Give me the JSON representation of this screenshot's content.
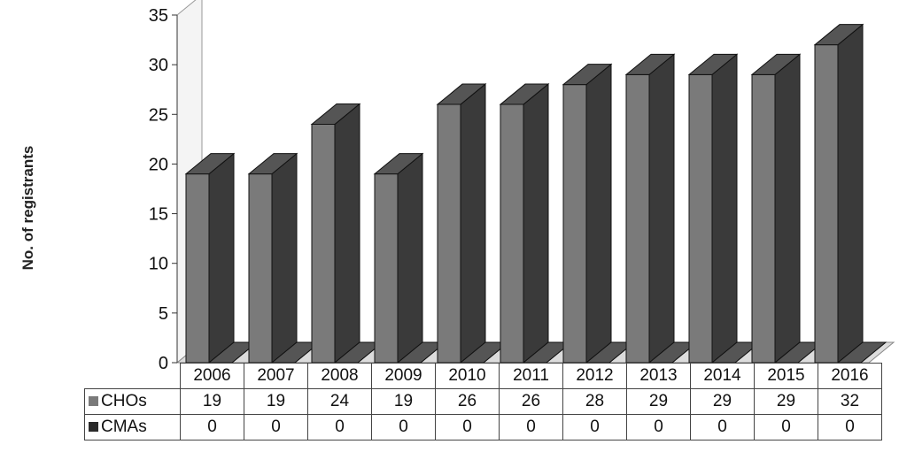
{
  "chart_data": {
    "type": "bar",
    "title": "",
    "ylabel": "No. of registrants",
    "xlabel": "",
    "categories": [
      "2006",
      "2007",
      "2008",
      "2009",
      "2010",
      "2011",
      "2012",
      "2013",
      "2014",
      "2015",
      "2016"
    ],
    "series": [
      {
        "name": "CHOs",
        "values": [
          19,
          19,
          24,
          19,
          26,
          26,
          28,
          29,
          29,
          29,
          32
        ],
        "color": "#7a7a7a"
      },
      {
        "name": "CMAs",
        "values": [
          0,
          0,
          0,
          0,
          0,
          0,
          0,
          0,
          0,
          0,
          0
        ],
        "color": "#2a2a2a"
      }
    ],
    "ylim": [
      0,
      35
    ],
    "yticks": [
      0,
      5,
      10,
      15,
      20,
      25,
      30,
      35
    ],
    "grid": false,
    "legend": "data table",
    "style": "3d clustered column"
  }
}
